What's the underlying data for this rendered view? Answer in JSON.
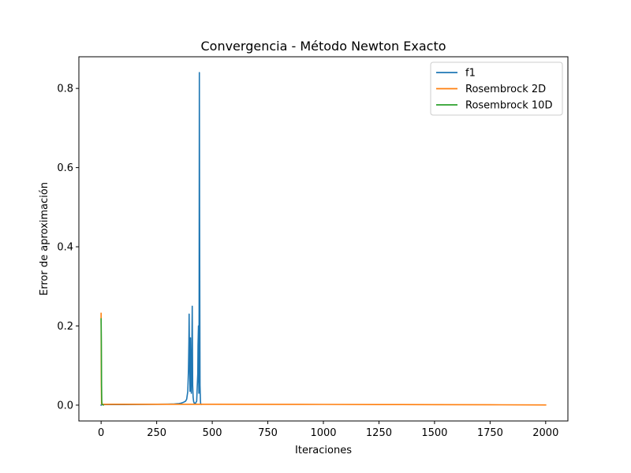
{
  "chart_data": {
    "type": "line",
    "title": "Convergencia - Método Newton Exacto",
    "xlabel": "Iteraciones",
    "ylabel": "Error de aproximación",
    "xlim": [
      -100,
      2100
    ],
    "ylim": [
      -0.04,
      0.88
    ],
    "xticks": [
      0,
      250,
      500,
      750,
      1000,
      1250,
      1500,
      1750,
      2000
    ],
    "yticks": [
      0.0,
      0.2,
      0.4,
      0.6,
      0.8
    ],
    "xtick_labels": [
      "0",
      "250",
      "500",
      "750",
      "1000",
      "1250",
      "1500",
      "1750",
      "2000"
    ],
    "ytick_labels": [
      "0.0",
      "0.2",
      "0.4",
      "0.6",
      "0.8"
    ],
    "grid": false,
    "legend_position": "top-right",
    "series": [
      {
        "name": "f1",
        "color": "#1f77b4",
        "x": [
          0,
          1,
          2,
          5,
          10,
          50,
          100,
          150,
          200,
          250,
          300,
          330,
          350,
          360,
          370,
          380,
          385,
          390,
          393,
          395,
          396,
          398,
          400,
          402,
          404,
          406,
          408,
          410,
          412,
          414,
          416,
          418,
          420,
          425,
          430,
          432,
          435,
          436,
          438,
          439,
          440,
          441,
          442,
          443,
          445,
          447,
          448,
          450
        ],
        "y": [
          0.0,
          0.0015,
          0.0015,
          0.0015,
          0.0015,
          0.0015,
          0.0015,
          0.0017,
          0.0018,
          0.0021,
          0.0025,
          0.003,
          0.004,
          0.005,
          0.007,
          0.01,
          0.015,
          0.035,
          0.09,
          0.16,
          0.23,
          0.1,
          0.035,
          0.17,
          0.06,
          0.03,
          0.12,
          0.25,
          0.05,
          0.02,
          0.01,
          0.006,
          0.005,
          0.005,
          0.01,
          0.04,
          0.08,
          0.15,
          0.2,
          0.06,
          0.03,
          0.25,
          0.84,
          0.5,
          0.05,
          0.01,
          0.003,
          0.002
        ]
      },
      {
        "name": "Rosembrock 2D",
        "color": "#ff7f0e",
        "x": [
          0,
          1,
          2,
          3,
          5,
          10,
          50,
          200,
          500,
          800,
          1000,
          1250,
          1500,
          1750,
          2000
        ],
        "y": [
          0.232,
          0.05,
          0.003,
          0.002,
          0.002,
          0.002,
          0.0021,
          0.0022,
          0.0022,
          0.002,
          0.0018,
          0.0015,
          0.0012,
          0.0009,
          0.0005
        ]
      },
      {
        "name": "Rosembrock 10D",
        "color": "#2ca02c",
        "x": [
          0,
          1,
          2,
          3,
          4,
          5,
          6,
          7,
          8,
          10
        ],
        "y": [
          0.218,
          0.16,
          0.05,
          0.01,
          0.003,
          0.002,
          0.001,
          0.0008,
          0.0005,
          0.0002
        ]
      }
    ]
  }
}
